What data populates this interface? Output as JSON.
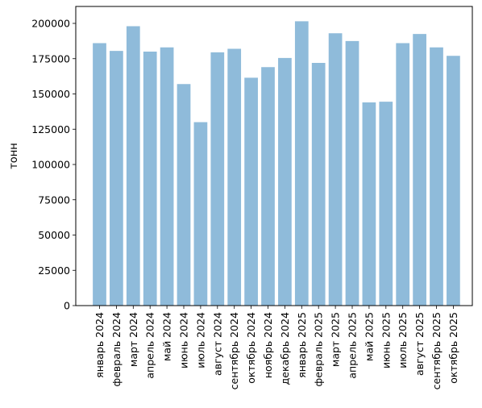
{
  "chart_data": {
    "type": "bar",
    "title": "",
    "xlabel": "",
    "ylabel": "тонн",
    "ylim": [
      0,
      212000
    ],
    "yticks": [
      0,
      25000,
      50000,
      75000,
      100000,
      125000,
      150000,
      175000,
      200000
    ],
    "grid": false,
    "bar_color": "#8fbbda",
    "categories": [
      "январь 2024",
      "февраль 2024",
      "март 2024",
      "апрель 2024",
      "май 2024",
      "июнь 2024",
      "июль 2024",
      "август 2024",
      "сентябрь 2024",
      "октябрь 2024",
      "ноябрь 2024",
      "декабрь 2024",
      "январь 2025",
      "февраль 2025",
      "март 2025",
      "апрель 2025",
      "май 2025",
      "июнь 2025",
      "июль 2025",
      "август 2025",
      "сентябрь 2025",
      "октябрь 2025"
    ],
    "values": [
      186000,
      180500,
      198000,
      180000,
      183000,
      157000,
      130000,
      179500,
      182000,
      161500,
      169000,
      175500,
      201500,
      172000,
      193000,
      187500,
      144000,
      144500,
      186000,
      192500,
      183000,
      177000
    ]
  }
}
